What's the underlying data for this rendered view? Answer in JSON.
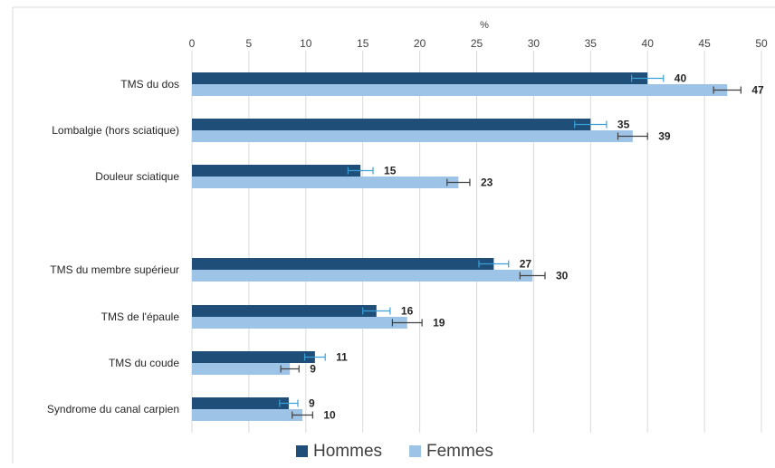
{
  "chart_data": {
    "type": "bar",
    "orientation": "horizontal",
    "title": "",
    "xlabel": "%",
    "ylabel": "",
    "xlim": [
      0,
      50
    ],
    "x_ticks": [
      0,
      5,
      10,
      15,
      20,
      25,
      30,
      35,
      40,
      45,
      50
    ],
    "x_tick_labels": [
      "0",
      "5",
      "10",
      "15",
      "20",
      "25",
      "30",
      "35",
      "40",
      "45",
      "50"
    ],
    "grid": true,
    "legend_position": "bottom",
    "categories": [
      "TMS du dos",
      "Lombalgie (hors sciatique)",
      "Douleur sciatique",
      "",
      "TMS du membre supérieur",
      "TMS de l'épaule",
      "TMS du coude",
      "Syndrome du canal carpien"
    ],
    "series": [
      {
        "name": "Hommes",
        "color": "#1f4e79",
        "error_color": "#3aa0d8",
        "values": [
          40,
          35,
          15,
          null,
          27,
          16,
          11,
          9
        ],
        "bar_values": [
          40,
          35,
          14.8,
          null,
          26.5,
          16.2,
          10.8,
          8.5
        ],
        "error": [
          1.4,
          1.4,
          1.1,
          null,
          1.3,
          1.2,
          0.9,
          0.8
        ]
      },
      {
        "name": "Femmes",
        "color": "#9dc3e6",
        "error_color": "#404040",
        "values": [
          47,
          39,
          23,
          null,
          30,
          19,
          9,
          10
        ],
        "bar_values": [
          47,
          38.7,
          23.4,
          null,
          29.9,
          18.9,
          8.6,
          9.7
        ],
        "error": [
          1.2,
          1.3,
          1.0,
          null,
          1.1,
          1.3,
          0.8,
          0.9
        ]
      }
    ]
  }
}
